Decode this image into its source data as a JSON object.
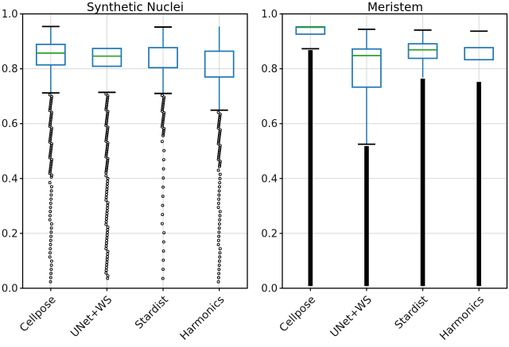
{
  "figure": {
    "left_title": "Synthetic Nuclei",
    "right_title": "Meristem"
  },
  "chart_data": {
    "type": "boxplot",
    "layout": "two-panel-grid",
    "style": {
      "box_color": "#1f77b4",
      "whisker_color": "#1f77b4",
      "median_color": "#2ca02c",
      "cap_color": "#000000",
      "outlier_color": "#000000",
      "grid_color": "#d8d8d8",
      "spine_color": "#000000",
      "background": "#ffffff"
    },
    "panels": [
      {
        "title": "Synthetic Nuclei",
        "categories": [
          "Cellpose",
          "UNet+WS",
          "Stardist",
          "Harmonics"
        ],
        "ylim": [
          0.0,
          1.0
        ],
        "yticks": [
          0.0,
          0.2,
          0.4,
          0.6,
          0.8,
          1.0
        ],
        "ytick_labels": [
          "0.0",
          "0.2",
          "0.4",
          "0.6",
          "0.8",
          "1.0"
        ],
        "grid": true,
        "boxes": [
          {
            "category": "Cellpose",
            "q1": 0.814,
            "median": 0.857,
            "q3": 0.889,
            "whisker_high": 0.954,
            "whisker_high_cap": true,
            "whisker_high_line": true,
            "whisker_low": 0.712,
            "whisker_low_cap": true,
            "whisker_low_line": true,
            "outliers": [
              {
                "top": 0.705,
                "bottom": 0.405,
                "density": "dense"
              },
              {
                "top": 0.385,
                "bottom": 0.02,
                "density": "medium"
              }
            ]
          },
          {
            "category": "UNet+WS",
            "q1": 0.809,
            "median": 0.846,
            "q3": 0.874,
            "whisker_high": null,
            "whisker_high_cap": false,
            "whisker_high_line": false,
            "whisker_low": 0.714,
            "whisker_low_cap": true,
            "whisker_low_line": false,
            "outliers": [
              {
                "top": 0.708,
                "bottom": 0.42,
                "density": "dense"
              },
              {
                "top": 0.41,
                "bottom": 0.03,
                "density": "semi"
              }
            ]
          },
          {
            "category": "Stardist",
            "q1": 0.804,
            "median": null,
            "q3": 0.877,
            "whisker_high": 0.952,
            "whisker_high_cap": true,
            "whisker_high_line": true,
            "whisker_low": 0.71,
            "whisker_low_cap": true,
            "whisker_low_line": true,
            "outliers": [
              {
                "top": 0.703,
                "bottom": 0.555,
                "density": "dense"
              },
              {
                "top": 0.535,
                "bottom": 0.01,
                "density": "sparse"
              }
            ]
          },
          {
            "category": "Harmonics",
            "q1": 0.77,
            "median": null,
            "q3": 0.864,
            "whisker_high": 0.954,
            "whisker_high_cap": false,
            "whisker_high_line": true,
            "whisker_low": 0.649,
            "whisker_low_cap": true,
            "whisker_low_line": true,
            "outliers": [
              {
                "top": 0.641,
                "bottom": 0.44,
                "density": "dense"
              },
              {
                "top": 0.43,
                "bottom": 0.015,
                "density": "medium"
              }
            ]
          }
        ]
      },
      {
        "title": "Meristem",
        "categories": [
          "Cellpose",
          "UNet+WS",
          "Stardist",
          "Harmonics"
        ],
        "ylim": [
          0.0,
          1.0
        ],
        "yticks": [
          0.0,
          0.2,
          0.4,
          0.6,
          0.8,
          1.0
        ],
        "ytick_labels": [
          "0.0",
          "0.2",
          "0.4",
          "0.6",
          "0.8",
          "1.0"
        ],
        "grid": true,
        "boxes": [
          {
            "category": "Cellpose",
            "q1": 0.926,
            "median": 0.951,
            "q3": 0.953,
            "whisker_high": null,
            "whisker_high_cap": false,
            "whisker_high_line": false,
            "whisker_low": 0.873,
            "whisker_low_cap": true,
            "whisker_low_line": false,
            "outliers": [
              {
                "top": 0.868,
                "bottom": 0.008,
                "density": "solid"
              }
            ]
          },
          {
            "category": "UNet+WS",
            "q1": 0.733,
            "median": 0.848,
            "q3": 0.872,
            "whisker_high": 0.944,
            "whisker_high_cap": true,
            "whisker_high_line": true,
            "whisker_low": 0.525,
            "whisker_low_cap": true,
            "whisker_low_line": true,
            "outliers": [
              {
                "top": 0.518,
                "bottom": 0.008,
                "density": "solid"
              }
            ]
          },
          {
            "category": "Stardist",
            "q1": 0.838,
            "median": 0.869,
            "q3": 0.891,
            "whisker_high": 0.941,
            "whisker_high_cap": true,
            "whisker_high_line": true,
            "whisker_low": 0.768,
            "whisker_low_cap": false,
            "whisker_low_line": true,
            "outliers": [
              {
                "top": 0.764,
                "bottom": 0.008,
                "density": "solid"
              }
            ]
          },
          {
            "category": "Harmonics",
            "q1": 0.833,
            "median": null,
            "q3": 0.877,
            "whisker_high": 0.937,
            "whisker_high_cap": true,
            "whisker_high_line": false,
            "whisker_low": null,
            "whisker_low_cap": false,
            "whisker_low_line": false,
            "outliers": [
              {
                "top": 0.752,
                "bottom": 0.008,
                "density": "solid"
              }
            ]
          }
        ]
      }
    ]
  }
}
